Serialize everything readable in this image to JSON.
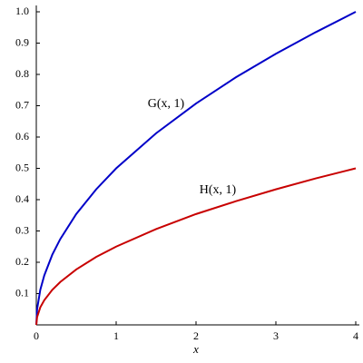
{
  "chart_data": {
    "type": "line",
    "x_label": "x",
    "x": [
      0,
      0.01,
      0.05,
      0.1,
      0.2,
      0.3,
      0.5,
      0.75,
      1,
      1.5,
      2,
      2.5,
      3,
      3.5,
      4
    ],
    "series": [
      {
        "name": "G(x, 1)",
        "color": "#0000c8",
        "values": [
          0,
          0.05,
          0.112,
          0.158,
          0.224,
          0.274,
          0.354,
          0.433,
          0.5,
          0.612,
          0.707,
          0.791,
          0.866,
          0.935,
          1.0
        ]
      },
      {
        "name": "H(x, 1)",
        "color": "#c80000",
        "values": [
          0,
          0.025,
          0.056,
          0.079,
          0.112,
          0.137,
          0.177,
          0.217,
          0.25,
          0.306,
          0.354,
          0.395,
          0.433,
          0.468,
          0.5
        ]
      }
    ],
    "xlim": [
      0,
      4
    ],
    "xticks": [
      0,
      1,
      2,
      3,
      4
    ],
    "ylim": [
      0,
      1.0
    ],
    "yticks": [
      0.1,
      0.2,
      0.3,
      0.4,
      0.5,
      0.6,
      0.7,
      0.8,
      0.9,
      {
        "value": 1.0,
        "label": "1.0"
      }
    ]
  }
}
